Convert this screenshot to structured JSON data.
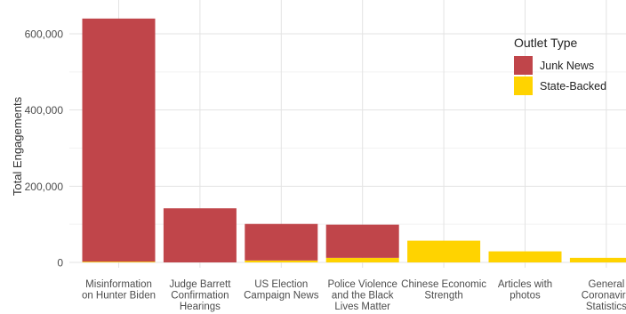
{
  "chart_data": {
    "type": "bar",
    "stacked": true,
    "ylabel": "Total Engagements",
    "xlabel": "",
    "ylim": [
      0,
      660000
    ],
    "yticks": [
      0,
      200000,
      400000,
      600000
    ],
    "ytick_labels": [
      "0",
      "200,000",
      "400,000",
      "600,000"
    ],
    "grid": true,
    "legend_position": "right",
    "categories": [
      [
        "Misinformation",
        "on Hunter Biden"
      ],
      [
        "Judge Barrett",
        "Confirmation",
        "Hearings"
      ],
      [
        "US Election",
        "Campaign News"
      ],
      [
        "Police Violence",
        "and the Black",
        "Lives Matter"
      ],
      [
        "Chinese Economic",
        "Strength"
      ],
      [
        "Articles with",
        "photos"
      ],
      [
        "General",
        "Coronaviru",
        "Statistics"
      ]
    ],
    "legend": {
      "title": "Outlet Type"
    },
    "series": [
      {
        "name": "State-Backed",
        "color": "#FFD300",
        "values": [
          2000,
          0,
          5000,
          12000,
          57000,
          29000,
          12000
        ]
      },
      {
        "name": "Junk News",
        "color": "#C0454A",
        "values": [
          638000,
          142000,
          96000,
          87000,
          0,
          0,
          0
        ]
      }
    ],
    "legend_order": [
      "Junk News",
      "State-Backed"
    ]
  }
}
